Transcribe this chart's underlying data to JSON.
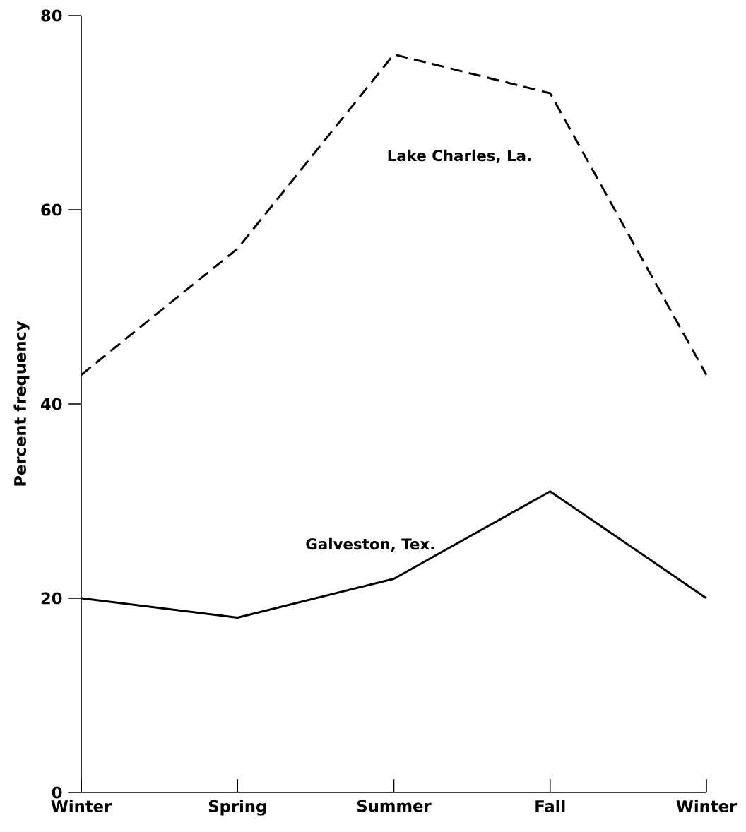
{
  "chart_data": {
    "type": "line",
    "ylabel": "Percent frequency",
    "categories": [
      "Winter",
      "Spring",
      "Summer",
      "Fall",
      "Winter"
    ],
    "series": [
      {
        "name": "Lake Charles, La.",
        "color": "#000000",
        "line_style": "dashed",
        "values": [
          43,
          56,
          76,
          72,
          43
        ]
      },
      {
        "name": "Galveston, Tex.",
        "color": "#000000",
        "line_style": "solid",
        "values": [
          20,
          18,
          22,
          31,
          20
        ]
      }
    ],
    "ylim": [
      0,
      80
    ],
    "yticks": [
      0,
      20,
      40,
      60,
      80
    ],
    "grid": false,
    "legend": false,
    "marker": "none"
  }
}
